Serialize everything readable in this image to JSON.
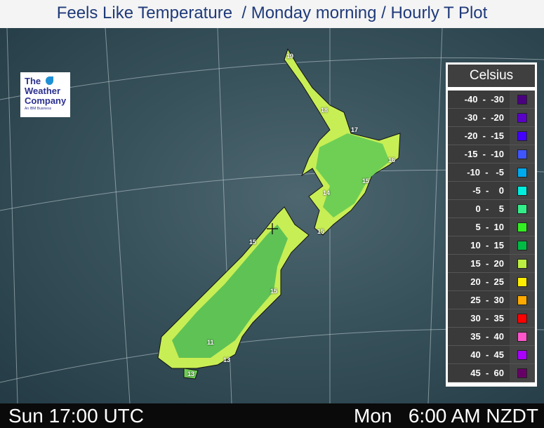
{
  "title": "Feels Like Temperature  / Monday morning / Hourly T Plot",
  "logo": {
    "line1": "The",
    "line2": "Weather",
    "line3": "Company",
    "line4": "An IBM Business"
  },
  "legend": {
    "title": "Celsius",
    "items": [
      {
        "range": "-40  -  -30",
        "color": "#4b0082"
      },
      {
        "range": "-30  -  -20",
        "color": "#5a00c8"
      },
      {
        "range": "-20  -  -15",
        "color": "#4400ff"
      },
      {
        "range": "-15  -  -10",
        "color": "#3f55ff"
      },
      {
        "range": "-10  -   -5",
        "color": "#00aaee"
      },
      {
        "range": "-5  -    0",
        "color": "#00eedd"
      },
      {
        "range": "0  -    5",
        "color": "#33ee88"
      },
      {
        "range": "5  -  10",
        "color": "#33ee22"
      },
      {
        "range": "10  -  15",
        "color": "#00bb44"
      },
      {
        "range": "15  -  20",
        "color": "#bbf040"
      },
      {
        "range": "20  -  25",
        "color": "#ffee00"
      },
      {
        "range": "25  -  30",
        "color": "#ffaa00"
      },
      {
        "range": "30  -  35",
        "color": "#ff0000"
      },
      {
        "range": "35  -  40",
        "color": "#ff55cc"
      },
      {
        "range": "40  -  45",
        "color": "#aa00ff"
      },
      {
        "range": "45  -  60",
        "color": "#660066"
      }
    ]
  },
  "map_labels": [
    "19",
    "18",
    "17",
    "16",
    "15",
    "14",
    "15",
    "15",
    "15",
    "11",
    "13",
    "13"
  ],
  "footer": {
    "utc": "Sun 17:00 UTC",
    "local": "Mon   6:00 AM NZDT"
  }
}
